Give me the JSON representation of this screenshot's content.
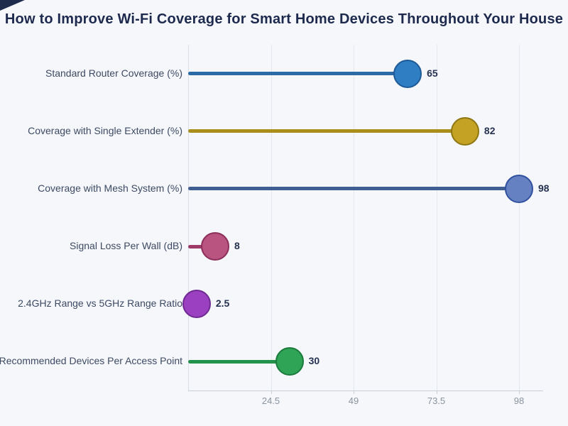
{
  "palette": {
    "background": "#f5f7fa",
    "title_color": "#1d2a4e",
    "category_label_color": "#3d4a63",
    "value_label_color": "#263251",
    "tick_label_color": "#8b939f",
    "gridline_color": "#e3e7ee",
    "axis_line_color": "#c9ced6",
    "left_axis_color": "#dadee5",
    "corner_mark_color": "#1e2b4d"
  },
  "chart_data": {
    "type": "bar",
    "subtype": "horizontal-lollipop",
    "title": "How to Improve Wi-Fi Coverage for Smart Home Devices Throughout Your House",
    "xlabel": "",
    "ylabel": "",
    "xlim": [
      0,
      105
    ],
    "x_ticks": [
      24.5,
      49,
      73.5,
      98
    ],
    "x_tick_labels": [
      "24.5",
      "49",
      "73.5",
      "98"
    ],
    "grid": "vertical-only",
    "legend": "none",
    "categories": [
      "Standard Router Coverage (%)",
      "Coverage with Single Extender (%)",
      "Coverage with Mesh System (%)",
      "Signal Loss Per Wall (dB)",
      "2.4GHz Range vs 5GHz Range Ratio",
      "Recommended Devices Per Access Point"
    ],
    "values": [
      65,
      82,
      98,
      8,
      2.5,
      30
    ],
    "points": [
      {
        "label": "Standard Router Coverage (%)",
        "value": 65,
        "value_label": "65",
        "fill": "#2f7ec3",
        "stroke": "#1d5a97",
        "stem": "#2b6aa4"
      },
      {
        "label": "Coverage with Single Extender (%)",
        "value": 82,
        "value_label": "82",
        "fill": "#c3a224",
        "stroke": "#8e7613",
        "stem": "#a98e1c"
      },
      {
        "label": "Coverage with Mesh System (%)",
        "value": 98,
        "value_label": "98",
        "fill": "#6581c2",
        "stroke": "#31519f",
        "stem": "#3f5e92"
      },
      {
        "label": "Signal Loss Per Wall (dB)",
        "value": 8,
        "value_label": "8",
        "fill": "#b95380",
        "stroke": "#8c2f5b",
        "stem": "#9e3a67"
      },
      {
        "label": "2.4GHz Range vs 5GHz Range Ratio",
        "value": 2.5,
        "value_label": "2.5",
        "fill": "#9b40c0",
        "stroke": "#6f2a92",
        "stem": "#8a35aa"
      },
      {
        "label": "Recommended Devices Per Access Point",
        "value": 30,
        "value_label": "30",
        "fill": "#2fa457",
        "stroke": "#1a7b3c",
        "stem": "#23924a"
      }
    ]
  }
}
